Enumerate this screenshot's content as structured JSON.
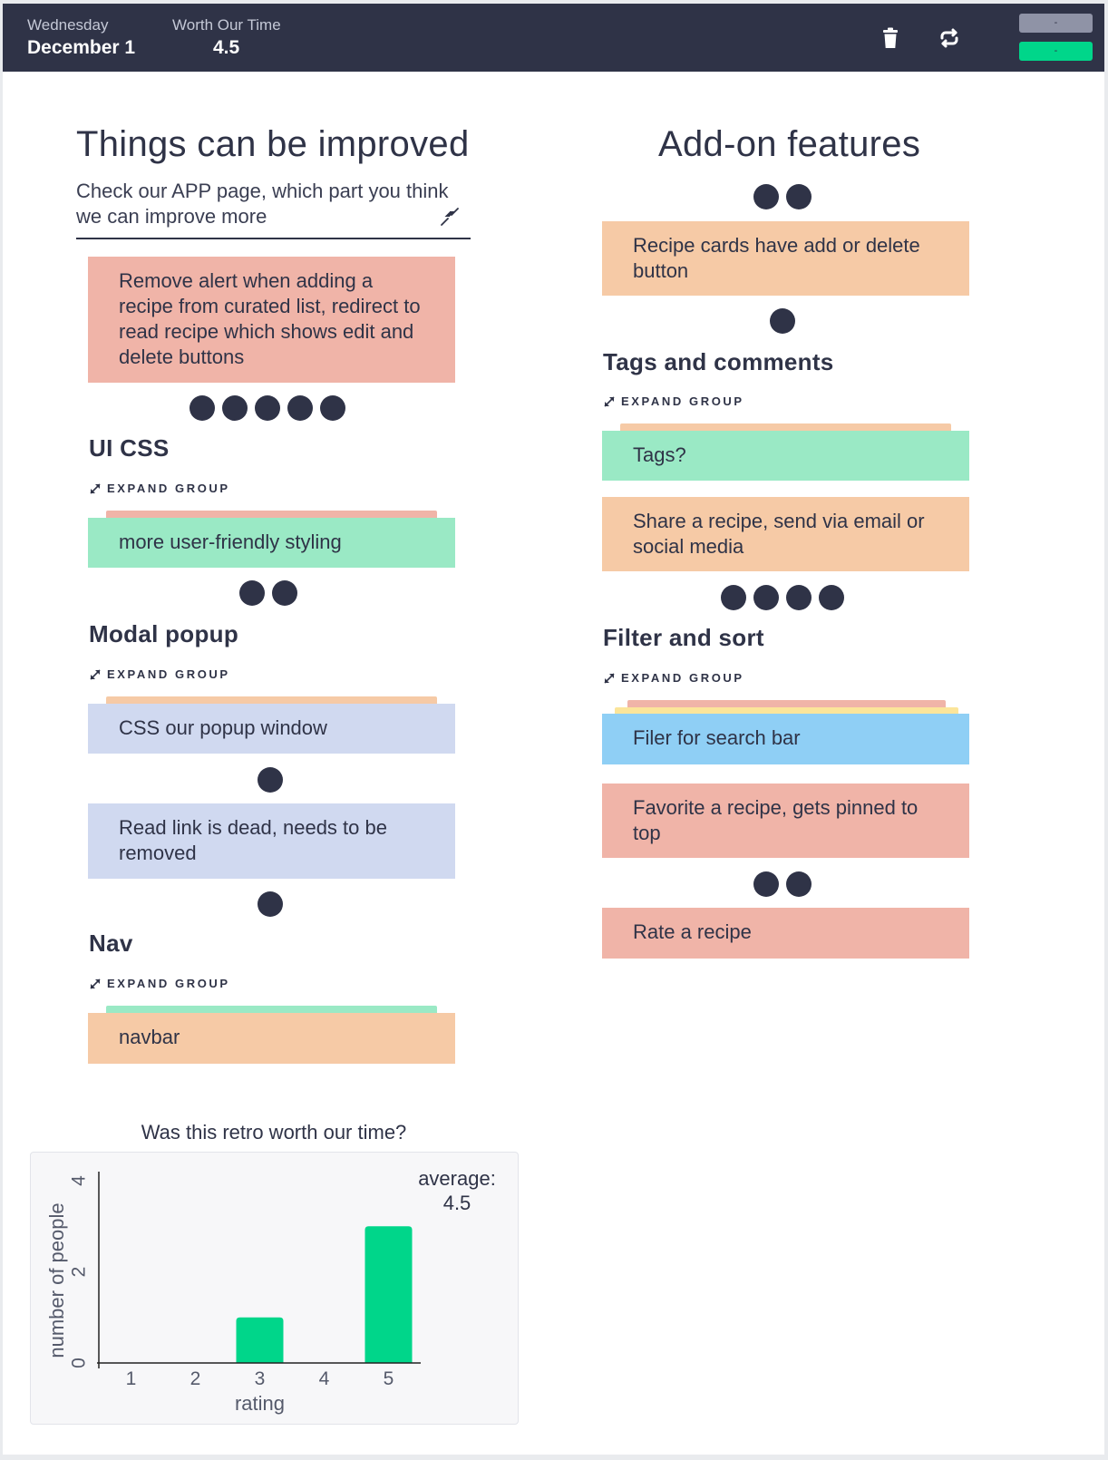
{
  "header": {
    "day_label": "Wednesday",
    "date": "December 1",
    "worth_label": "Worth Our Time",
    "worth_value": "4.5",
    "btn_top": "-",
    "btn_bottom": "-"
  },
  "left": {
    "title": "Things can be improved",
    "prompt": "Check our APP page, which part you think we can improve more",
    "card_1": "Remove alert when adding a recipe from curated list, redirect to read recipe which shows edit and delete buttons",
    "group_1": {
      "title": "UI CSS",
      "expand": "EXPAND GROUP",
      "card": "more user-friendly styling"
    },
    "group_2": {
      "title": "Modal popup",
      "expand": "EXPAND GROUP",
      "card": "CSS our popup window"
    },
    "card_2": "Read link is dead, needs to be removed",
    "group_3": {
      "title": "Nav",
      "expand": "EXPAND GROUP",
      "card": "navbar"
    }
  },
  "right": {
    "title": "Add-on features",
    "card_1": "Recipe cards have add or delete button",
    "group_1": {
      "title": "Tags and comments",
      "expand": "EXPAND GROUP",
      "card": "Tags?"
    },
    "card_2": "Share a recipe, send via email or social media",
    "group_2": {
      "title": "Filter and sort",
      "expand": "EXPAND GROUP",
      "card": "Filer for search bar"
    },
    "card_3": "Favorite a recipe, gets pinned to top",
    "card_4": "Rate a recipe"
  },
  "colors": {
    "salmon": "#f0b4a8",
    "orange": "#f6caa6",
    "green": "#9ae9c5",
    "lavender": "#d0d9f0",
    "blue": "#8fcff5",
    "yellow": "#fbe59a",
    "bar": "#00d68a",
    "dark": "#2f3347"
  },
  "chart_data": {
    "type": "bar",
    "title": "Was this retro worth our time?",
    "xlabel": "rating",
    "ylabel": "number of people",
    "categories": [
      "1",
      "2",
      "3",
      "4",
      "5"
    ],
    "values": [
      0,
      0,
      1,
      0,
      3
    ],
    "ylim": [
      0,
      4
    ],
    "yticks": [
      "0",
      "2",
      "4"
    ],
    "annotation": "average:\n4.5",
    "grid": false
  }
}
